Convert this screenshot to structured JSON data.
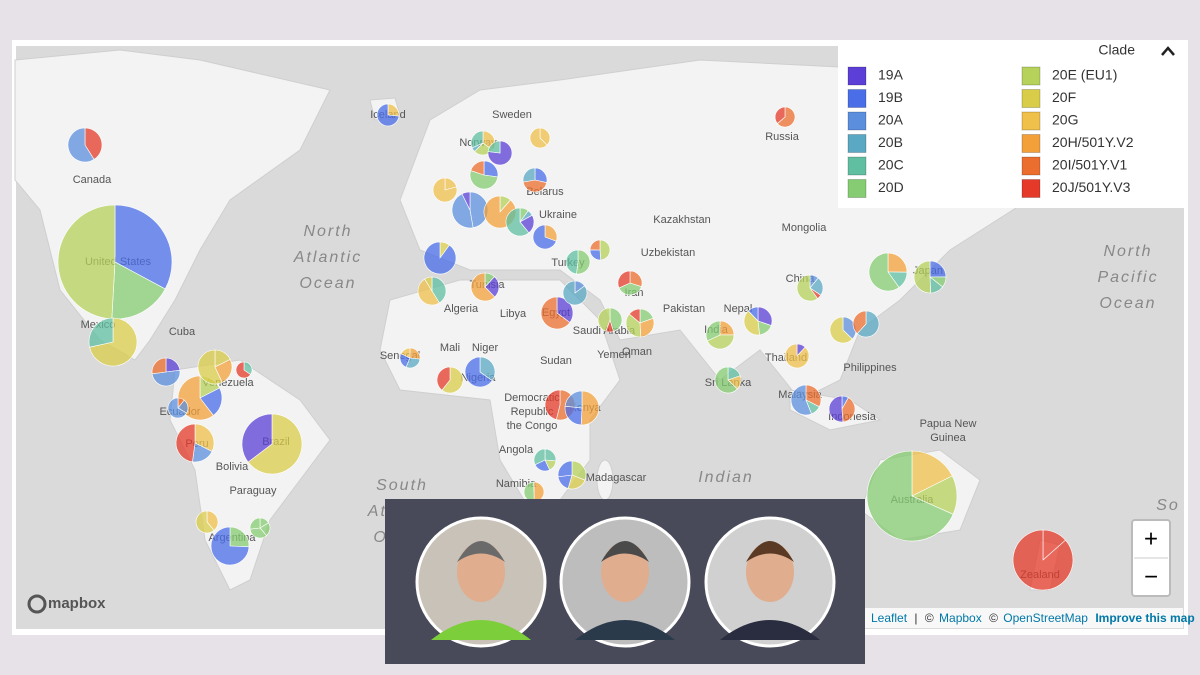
{
  "legend": {
    "title": "Clade",
    "items": [
      {
        "label": "19A",
        "color": "#5b3fd6"
      },
      {
        "label": "19B",
        "color": "#4a6ee8"
      },
      {
        "label": "20A",
        "color": "#5b8fde"
      },
      {
        "label": "20B",
        "color": "#5aa8c4"
      },
      {
        "label": "20C",
        "color": "#5fbfa0"
      },
      {
        "label": "20D",
        "color": "#85cc72"
      },
      {
        "label": "20E (EU1)",
        "color": "#b6d25a"
      },
      {
        "label": "20F",
        "color": "#d9cc48"
      },
      {
        "label": "20G",
        "color": "#efc04a"
      },
      {
        "label": "20H/501Y.V2",
        "color": "#f3a03a"
      },
      {
        "label": "20I/501Y.V1",
        "color": "#ec6e2f"
      },
      {
        "label": "20J/501Y.V3",
        "color": "#e53a2a"
      }
    ]
  },
  "places": [
    "Canada",
    "United States",
    "Mexico",
    "Cuba",
    "Venezuela",
    "Ecuador",
    "Peru",
    "Bolivia",
    "Brazil",
    "Paraguay",
    "Argentina",
    "Iceland",
    "Sweden",
    "Norway",
    "Russia",
    "Belarus",
    "Ukraine",
    "Kazakhstan",
    "Mongolia",
    "Uzbekistan",
    "China",
    "Japan",
    "Nepal",
    "Pakistan",
    "Iran",
    "Turkey",
    "Saudi Arabia",
    "Yemen",
    "Oman",
    "Egypt",
    "Libya",
    "Algeria",
    "Tunisia",
    "Senegal",
    "Mali",
    "Niger",
    "Nigeria",
    "Sudan",
    "Democratic",
    "Republic",
    "the Congo",
    "Angola",
    "Namibia",
    "Madagascar",
    "Kenya",
    "India",
    "Sri Lanka",
    "Thailand",
    "Malaysia",
    "Philippines",
    "Indonesia",
    "Papua New",
    "Guinea",
    "Australia",
    "Zealand"
  ],
  "oceans": [
    {
      "lines": [
        "North",
        "Atlantic",
        "Ocean"
      ]
    },
    {
      "lines": [
        "North",
        "Pacific",
        "Ocean"
      ]
    },
    {
      "lines": [
        "South",
        "Atlantic",
        "Ocean"
      ]
    },
    {
      "lines": [
        "Indian"
      ]
    },
    {
      "lines": [
        "So"
      ]
    }
  ],
  "attribution": {
    "leaflet": "Leaflet",
    "sep1": "|",
    "copy1": "©",
    "mapbox": "Mapbox",
    "copy2": "©",
    "osm": "OpenStreetMap",
    "improve": "Improve this map"
  },
  "logo": "mapbox",
  "zoom_in": "+",
  "zoom_out": "−"
}
